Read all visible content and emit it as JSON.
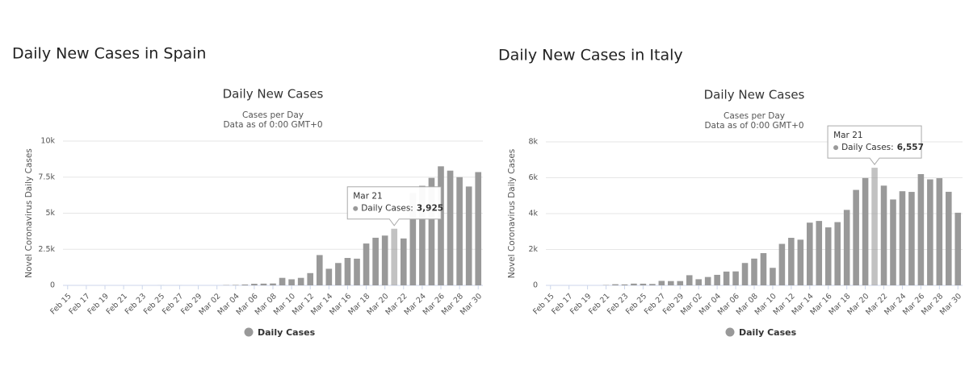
{
  "chart_data": [
    {
      "type": "bar",
      "heading": "Daily New Cases in Spain",
      "title": "Daily New Cases",
      "subtitle": [
        "Cases per Day",
        "Data as of 0:00 GMT+0"
      ],
      "ylabel": "Novel Coronavirus Daily Cases",
      "categories": [
        "Feb 15",
        null,
        "Feb 17",
        null,
        "Feb 19",
        null,
        "Feb 21",
        null,
        "Feb 23",
        null,
        "Feb 25",
        null,
        "Feb 27",
        null,
        "Feb 29",
        null,
        "Mar 02",
        null,
        "Mar 04",
        null,
        "Mar 06",
        null,
        "Mar 08",
        null,
        "Mar 10",
        null,
        "Mar 12",
        null,
        "Mar 14",
        null,
        "Mar 16",
        null,
        "Mar 18",
        null,
        "Mar 20",
        null,
        "Mar 22",
        null,
        "Mar 24",
        null,
        "Mar 26",
        null,
        "Mar 28",
        null,
        "Mar 30"
      ],
      "series": [
        {
          "name": "Daily Cases",
          "color": "#999999",
          "values": [
            0,
            0,
            0,
            0,
            0,
            0,
            0,
            0,
            0,
            0,
            4,
            0,
            2,
            0,
            0,
            0,
            0,
            20,
            30,
            60,
            110,
            120,
            130,
            520,
            420,
            520,
            850,
            2100,
            1150,
            1550,
            1900,
            1850,
            2900,
            3300,
            3450,
            3925,
            3250,
            6400,
            6900,
            7450,
            8250,
            7950,
            7500,
            6850,
            7850
          ]
        }
      ],
      "ylim": [
        0,
        10000
      ],
      "yticks": [
        0,
        {
          "value": 2500,
          "label": "2.5k"
        },
        {
          "value": 5000,
          "label": "5k"
        },
        {
          "value": 7500,
          "label": "7.5k"
        },
        {
          "value": 10000,
          "label": "10k"
        }
      ],
      "grid": true,
      "tooltip": {
        "category": "Mar 21",
        "label": "Daily Cases:",
        "value": 3925,
        "value_label": "3,925"
      }
    },
    {
      "type": "bar",
      "heading": "Daily New Cases in Italy",
      "title": "Daily New Cases",
      "subtitle": [
        "Cases per Day",
        "Data as of 0:00 GMT+0"
      ],
      "ylabel": "Novel Coronavirus Daily Cases",
      "categories": [
        "Feb 15",
        null,
        "Feb 17",
        null,
        "Feb 19",
        null,
        "Feb 21",
        null,
        "Feb 23",
        null,
        "Feb 25",
        null,
        "Feb 27",
        null,
        "Feb 29",
        null,
        "Mar 02",
        null,
        "Mar 04",
        null,
        "Mar 06",
        null,
        "Mar 08",
        null,
        "Mar 10",
        null,
        "Mar 12",
        null,
        "Mar 14",
        null,
        "Mar 16",
        null,
        "Mar 18",
        null,
        "Mar 20",
        null,
        "Mar 22",
        null,
        "Mar 24",
        null,
        "Mar 26",
        null,
        "Mar 28",
        null,
        "Mar 30"
      ],
      "series": [
        {
          "name": "Daily Cases",
          "color": "#999999",
          "values": [
            0,
            0,
            0,
            0,
            0,
            0,
            17,
            62,
            53,
            97,
            93,
            78,
            250,
            238,
            240,
            566,
            342,
            466,
            587,
            769,
            778,
            1247,
            1492,
            1797,
            977,
            2313,
            2651,
            2547,
            3497,
            3590,
            3233,
            3526,
            4207,
            5322,
            5986,
            6557,
            5560,
            4789,
            5249,
            5210,
            6203,
            5909,
            5974,
            5217,
            4050
          ]
        }
      ],
      "ylim": [
        0,
        8000
      ],
      "yticks": [
        0,
        {
          "value": 2000,
          "label": "2k"
        },
        {
          "value": 4000,
          "label": "4k"
        },
        {
          "value": 6000,
          "label": "6k"
        },
        {
          "value": 8000,
          "label": "8k"
        }
      ],
      "grid": true,
      "tooltip": {
        "category": "Mar 21",
        "label": "Daily Cases:",
        "value": 6557,
        "value_label": "6,557"
      }
    }
  ]
}
